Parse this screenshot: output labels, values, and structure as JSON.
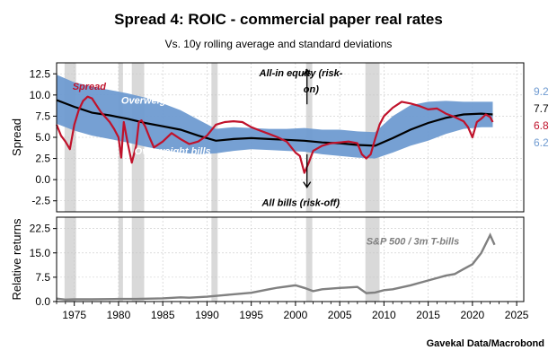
{
  "title": "Spread 4: ROIC - commercial paper real rates",
  "subtitle": "Vs. 10y rolling average and standard deviations",
  "source": "Gavekal Data/Macrobond",
  "colors": {
    "spread": "#c0122b",
    "average": "#000000",
    "band": "#6f9bd1",
    "ratio": "#808080",
    "recession": "#d9d9d9"
  },
  "chart_data": [
    {
      "type": "line",
      "ylabel": "Spread",
      "xlim": [
        1973,
        2025.8
      ],
      "ylim": [
        -3.8,
        13.8
      ],
      "yticks": [
        "12.5",
        "10.0",
        "7.5",
        "5.0",
        "2.5",
        "0.0",
        "-2.5"
      ],
      "ytick_values": [
        12.5,
        10.0,
        7.5,
        5.0,
        2.5,
        0.0,
        -2.5
      ],
      "grid": true,
      "recession_bands": [
        [
          1973.9,
          1975.2
        ],
        [
          1980.0,
          1980.5
        ],
        [
          1981.5,
          1982.9
        ],
        [
          1990.5,
          1991.2
        ],
        [
          2001.2,
          2001.9
        ],
        [
          2007.9,
          2009.5
        ]
      ],
      "series": [
        {
          "name": "Spread",
          "x": [
            1973,
            1973.5,
            1974,
            1974.5,
            1975,
            1975.5,
            1976,
            1976.5,
            1977,
            1977.5,
            1978,
            1978.5,
            1979,
            1979.5,
            1980,
            1980.3,
            1980.6,
            1981,
            1981.5,
            1982,
            1982.3,
            1982.6,
            1983,
            1983.5,
            1984,
            1985,
            1986,
            1987,
            1988,
            1989,
            1990,
            1991,
            1992,
            1993,
            1994,
            1995,
            1996,
            1997,
            1998,
            1999,
            2000,
            2000.5,
            2001,
            2001.5,
            2002,
            2003,
            2004,
            2005,
            2006,
            2007,
            2007.5,
            2008,
            2008.5,
            2009,
            2009.5,
            2010,
            2011,
            2012,
            2013,
            2014,
            2015,
            2016,
            2017,
            2018,
            2019,
            2019.5,
            2020,
            2020.5,
            2021,
            2021.5,
            2022,
            2022.3
          ],
          "values": [
            6.5,
            5.2,
            4.5,
            3.6,
            6.5,
            8.2,
            9.3,
            9.8,
            9.6,
            8.8,
            8.0,
            7.4,
            6.8,
            6.0,
            5.0,
            2.6,
            6.8,
            4.5,
            2.0,
            4.0,
            6.8,
            7.0,
            6.3,
            5.0,
            3.8,
            4.5,
            5.5,
            4.8,
            4.2,
            4.5,
            5.2,
            6.5,
            6.8,
            6.9,
            6.8,
            6.2,
            5.8,
            5.4,
            5.0,
            4.5,
            3.2,
            2.8,
            0.8,
            2.0,
            3.4,
            4.0,
            4.3,
            4.4,
            4.5,
            4.3,
            3.0,
            2.5,
            3.0,
            4.8,
            6.5,
            7.5,
            8.5,
            9.2,
            9.0,
            8.7,
            8.3,
            8.4,
            7.8,
            7.4,
            6.9,
            6.2,
            5.0,
            6.8,
            7.2,
            7.7,
            7.4,
            6.8
          ]
        },
        {
          "name": "Average",
          "x": [
            1973,
            1975,
            1977,
            1979,
            1981,
            1983,
            1985,
            1987,
            1989,
            1991,
            1993,
            1995,
            1997,
            1999,
            2001,
            2003,
            2005,
            2007,
            2009,
            2011,
            2013,
            2015,
            2017,
            2019,
            2021,
            2022.3
          ],
          "values": [
            9.4,
            8.6,
            7.9,
            7.6,
            7.2,
            6.7,
            6.3,
            5.9,
            5.2,
            4.6,
            4.8,
            4.9,
            4.8,
            4.7,
            4.6,
            4.4,
            4.3,
            4.1,
            4.0,
            4.9,
            5.9,
            6.7,
            7.3,
            7.7,
            7.8,
            7.7
          ]
        },
        {
          "name": "Upper band",
          "x": [
            1973,
            1975,
            1977,
            1979,
            1981,
            1983,
            1985,
            1987,
            1989,
            1991,
            1993,
            1995,
            1997,
            1999,
            2001,
            2003,
            2005,
            2007,
            2009,
            2011,
            2013,
            2015,
            2017,
            2019,
            2021,
            2022.3
          ],
          "values": [
            12.4,
            11.5,
            11.0,
            10.6,
            10.2,
            9.7,
            9.0,
            8.2,
            7.1,
            6.0,
            6.2,
            6.1,
            6.0,
            6.0,
            6.1,
            5.9,
            5.9,
            5.7,
            5.6,
            7.5,
            8.8,
            9.2,
            9.3,
            9.2,
            9.2,
            9.2
          ]
        },
        {
          "name": "Lower band",
          "x": [
            1973,
            1975,
            1977,
            1979,
            1981,
            1983,
            1985,
            1987,
            1989,
            1991,
            1993,
            1995,
            1997,
            1999,
            2001,
            2003,
            2005,
            2007,
            2009,
            2011,
            2013,
            2015,
            2017,
            2019,
            2021,
            2022.3
          ],
          "values": [
            6.6,
            5.8,
            5.2,
            4.8,
            4.4,
            3.9,
            3.5,
            3.2,
            3.0,
            3.1,
            3.4,
            3.6,
            3.5,
            3.4,
            3.3,
            3.0,
            2.8,
            2.6,
            2.5,
            3.2,
            4.0,
            4.6,
            5.4,
            6.0,
            6.2,
            6.2
          ]
        }
      ],
      "annotations": [
        {
          "text": "Spread",
          "x": 1974.8,
          "y": 10.6
        },
        {
          "text": "Overweight eq",
          "x": 1980.3,
          "y": 9.0
        },
        {
          "text": "Overweight bills",
          "x": 1981.8,
          "y": 3.0
        },
        {
          "text": "All-in equity (risk-",
          "x": 1995.9,
          "y": 12.2
        },
        {
          "text": "on)",
          "x": 2000.9,
          "y": 10.3
        },
        {
          "text": "All bills (risk-off)",
          "x": 1996.2,
          "y": -3.1
        }
      ],
      "arrows": [
        {
          "direction": "up",
          "x": 2001.3,
          "y_from": 8.9,
          "y_to": 13.0
        },
        {
          "direction": "down",
          "x": 2001.3,
          "y_from": 3.0,
          "y_to": -0.9
        }
      ],
      "right_labels": [
        {
          "text": "9.2",
          "color": "#6f9bd1"
        },
        {
          "text": "7.7",
          "color": "#000000"
        },
        {
          "text": "6.8",
          "color": "#c0122b"
        },
        {
          "text": "6.2",
          "color": "#6f9bd1"
        }
      ]
    },
    {
      "type": "line",
      "ylabel": "Relative returns",
      "xlim": [
        1973,
        2025.8
      ],
      "ylim": [
        0,
        26
      ],
      "yticks": [
        "22.5",
        "15.0",
        "7.5",
        "0.0"
      ],
      "ytick_values": [
        22.5,
        15.0,
        7.5,
        0.0
      ],
      "xticks": [
        "1975",
        "1980",
        "1985",
        "1990",
        "1995",
        "2000",
        "2005",
        "2010",
        "2015",
        "2020",
        "2025"
      ],
      "xtick_values": [
        1975,
        1980,
        1985,
        1990,
        1995,
        2000,
        2005,
        2010,
        2015,
        2020,
        2025
      ],
      "grid": true,
      "series": [
        {
          "name": "S&P 500 / 3m T-bills",
          "x": [
            1973,
            1974,
            1975,
            1977,
            1980,
            1982,
            1985,
            1987,
            1988,
            1990,
            1992,
            1995,
            1997,
            1998,
            2000,
            2001,
            2002,
            2003,
            2005,
            2007,
            2008,
            2009,
            2010,
            2011,
            2013,
            2015,
            2017,
            2018,
            2019,
            2020,
            2021,
            2022,
            2022.5
          ],
          "values": [
            0.9,
            0.6,
            0.7,
            0.7,
            0.8,
            0.8,
            1.0,
            1.3,
            1.2,
            1.5,
            2.0,
            2.7,
            3.8,
            4.3,
            5.0,
            4.2,
            3.2,
            3.8,
            4.2,
            4.5,
            2.6,
            2.8,
            3.5,
            3.8,
            5.0,
            6.5,
            8.0,
            8.5,
            10.0,
            11.5,
            15.0,
            20.5,
            17.5
          ]
        }
      ],
      "annotations": [
        {
          "text": "S&P 500 / 3m T-bills",
          "x": 2008.0,
          "y": 17.5
        }
      ]
    }
  ]
}
